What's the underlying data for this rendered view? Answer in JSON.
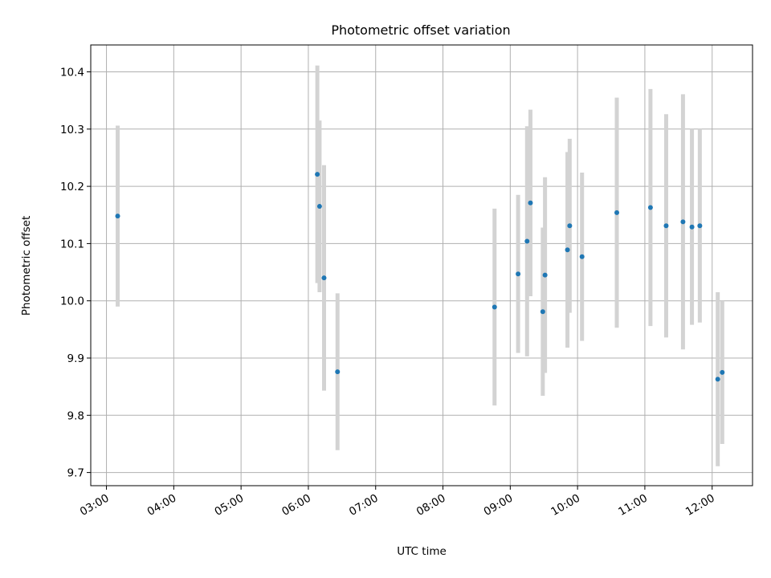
{
  "chart_data": {
    "type": "scatter",
    "title": "Photometric offset variation",
    "xlabel": "UTC time",
    "ylabel": "Photometric offset",
    "x_axis_type": "time",
    "xlim": [
      "02:46",
      "12:36"
    ],
    "ylim": [
      9.677,
      10.447
    ],
    "grid": true,
    "legend": "none",
    "x_ticks": [
      "03:00",
      "04:00",
      "05:00",
      "06:00",
      "07:00",
      "08:00",
      "09:00",
      "10:00",
      "11:00",
      "12:00"
    ],
    "y_ticks": [
      "9.7",
      "9.8",
      "9.9",
      "10.0",
      "10.1",
      "10.2",
      "10.3",
      "10.4"
    ],
    "point_color": "#1f77b4",
    "errorbar_color": "#d3d3d3",
    "points": [
      {
        "x": "03:10",
        "y": 10.148,
        "err": 0.158
      },
      {
        "x": "06:08",
        "y": 10.221,
        "err": 0.19
      },
      {
        "x": "06:10",
        "y": 10.165,
        "err": 0.15
      },
      {
        "x": "06:14",
        "y": 10.04,
        "err": 0.197
      },
      {
        "x": "06:26",
        "y": 9.876,
        "err": 0.137
      },
      {
        "x": "08:46",
        "y": 9.989,
        "err": 0.172
      },
      {
        "x": "09:07",
        "y": 10.047,
        "err": 0.138
      },
      {
        "x": "09:15",
        "y": 10.104,
        "err": 0.201
      },
      {
        "x": "09:18",
        "y": 10.171,
        "err": 0.163
      },
      {
        "x": "09:29",
        "y": 9.981,
        "err": 0.147
      },
      {
        "x": "09:31",
        "y": 10.045,
        "err": 0.171
      },
      {
        "x": "09:51",
        "y": 10.089,
        "err": 0.171
      },
      {
        "x": "09:53",
        "y": 10.131,
        "err": 0.152
      },
      {
        "x": "10:04",
        "y": 10.077,
        "err": 0.147
      },
      {
        "x": "10:35",
        "y": 10.154,
        "err": 0.201
      },
      {
        "x": "11:05",
        "y": 10.163,
        "err": 0.207
      },
      {
        "x": "11:19",
        "y": 10.131,
        "err": 0.195
      },
      {
        "x": "11:34",
        "y": 10.138,
        "err": 0.223
      },
      {
        "x": "11:42",
        "y": 10.129,
        "err": 0.171
      },
      {
        "x": "11:49",
        "y": 10.131,
        "err": 0.169
      },
      {
        "x": "12:05",
        "y": 9.863,
        "err": 0.152
      },
      {
        "x": "12:09",
        "y": 9.875,
        "err": 0.125
      }
    ]
  }
}
